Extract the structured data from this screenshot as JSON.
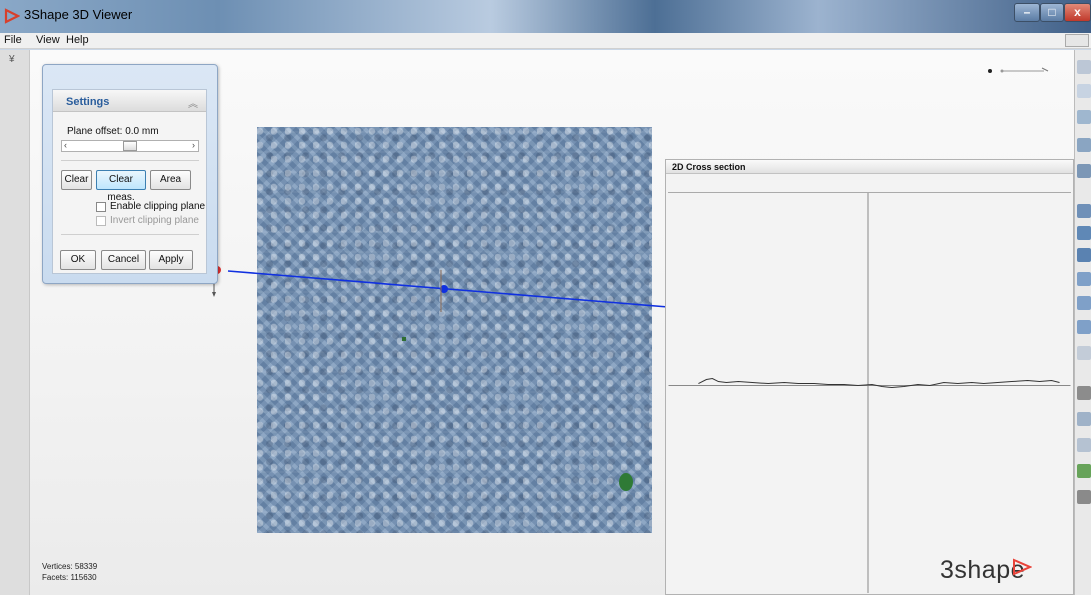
{
  "window": {
    "title": "3Shape 3D Viewer",
    "minimize_glyph": "–",
    "maximize_glyph": "□",
    "close_glyph": "x"
  },
  "menu": [
    {
      "label": "File"
    },
    {
      "label": "View"
    },
    {
      "label": "Help"
    }
  ],
  "left_strip": {
    "collapse_glyph": "¥"
  },
  "settings": {
    "title": "Settings",
    "plane_offset_label": "Plane offset: 0.0 mm",
    "slider_value": 0.5,
    "buttons": {
      "clear": "Clear",
      "clear_meas": "Clear meas.",
      "area": "Area"
    },
    "enable_clipping_label": "Enable clipping plane",
    "invert_clipping_label": "Invert clipping plane",
    "ok": "OK",
    "cancel": "Cancel",
    "apply": "Apply"
  },
  "cross_section": {
    "title": "2D Cross section"
  },
  "stats": {
    "vertices": "Vertices: 58339",
    "facets": "Facets: 115630"
  },
  "logo": {
    "text": "3shape"
  },
  "colors": {
    "measure_line": "#1030e0",
    "handle": "#e03030",
    "accent": "#2a5d9c",
    "logo_mark": "#e8433a"
  },
  "icons": [
    "app-icon",
    "chevron-up-icon",
    "collapse-icon",
    "axis-indicator-icon",
    "logo-triangle-icon"
  ]
}
